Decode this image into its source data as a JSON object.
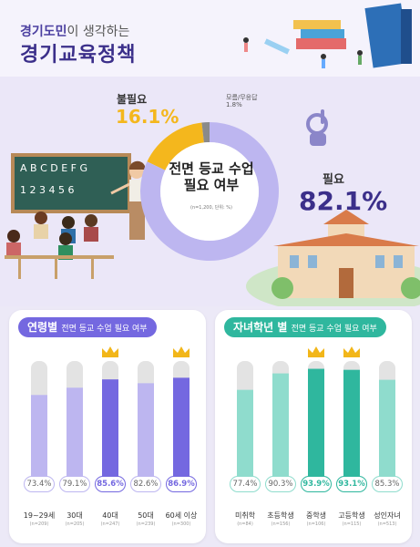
{
  "header": {
    "subtitle_bold": "경기도민",
    "subtitle_rest": "이 생각하는",
    "title": "경기교육정책"
  },
  "colors": {
    "purple": "#7468e0",
    "purple_light": "#bdb6f0",
    "yellow": "#f4b71d",
    "teal": "#2fb79e",
    "teal_light": "#8fdccd",
    "track": "#e3e3e3",
    "crown": "#f2b619"
  },
  "blackboard": {
    "row1": "A B C D E F G",
    "row2": "1 2 3 4 5 6"
  },
  "chart_data": [
    {
      "type": "pie",
      "title": "전면 등교 수업 필요 여부",
      "note": "(n=1,200, 단위: %)",
      "slices": [
        {
          "label": "필요",
          "value": 82.1
        },
        {
          "label": "불필요",
          "value": 16.1
        },
        {
          "label": "모름/무응답",
          "value": 1.8
        }
      ],
      "display": {
        "need": "82.1%",
        "noneed": "16.1%",
        "unknown": "1.8%"
      }
    },
    {
      "type": "bar",
      "title": "연령별",
      "title_rest": "전면 등교 수업 필요 여부",
      "categories": [
        "19~29세",
        "30대",
        "40대",
        "50대",
        "60세 이상"
      ],
      "values": [
        73.4,
        79.1,
        85.6,
        82.6,
        86.9
      ],
      "value_labels": [
        "73.4%",
        "79.1%",
        "85.6%",
        "82.6%",
        "86.9%"
      ],
      "n": [
        "(n=209)",
        "(n=205)",
        "(n=247)",
        "(n=239)",
        "(n=300)"
      ],
      "highlighted": [
        2,
        4
      ],
      "ylim": [
        0,
        100
      ]
    },
    {
      "type": "bar",
      "title": "자녀학년 별",
      "title_rest": "전면 등교 수업 필요 여부",
      "categories": [
        "미취학",
        "초등학생",
        "중학생",
        "고등학생",
        "성인자녀"
      ],
      "values": [
        77.4,
        90.3,
        93.9,
        93.1,
        85.3
      ],
      "value_labels": [
        "77.4%",
        "90.3%",
        "93.9%",
        "93.1%",
        "85.3%"
      ],
      "n": [
        "(n=84)",
        "(n=156)",
        "(n=106)",
        "(n=115)",
        "(n=513)"
      ],
      "highlighted": [
        2,
        3
      ],
      "ylim": [
        0,
        100
      ]
    }
  ]
}
